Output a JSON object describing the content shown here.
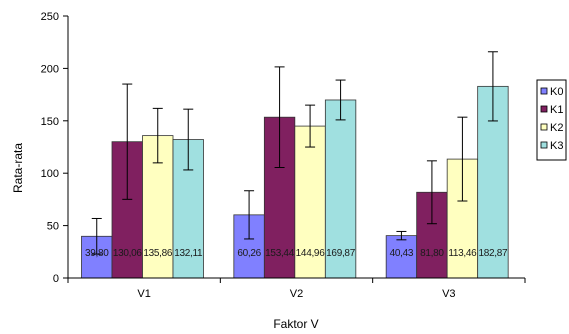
{
  "chart_data": {
    "type": "bar",
    "categories": [
      "V1",
      "V2",
      "V3"
    ],
    "series": [
      {
        "name": "K0",
        "color": "#8080ff",
        "values": [
          39.8,
          60.26,
          40.43
        ],
        "labels": [
          "39,80",
          "60,26",
          "40,43"
        ],
        "errors": [
          17,
          23,
          4
        ]
      },
      {
        "name": "K1",
        "color": "#802060",
        "values": [
          130.06,
          153.44,
          81.8
        ],
        "labels": [
          "130,06",
          "153,44",
          "81,80"
        ],
        "errors": [
          55,
          48,
          30
        ]
      },
      {
        "name": "K2",
        "color": "#ffffc0",
        "values": [
          135.86,
          144.96,
          113.46
        ],
        "labels": [
          "135,86",
          "144,96",
          "113,46"
        ],
        "errors": [
          26,
          20,
          40
        ]
      },
      {
        "name": "K3",
        "color": "#a0e0e0",
        "values": [
          132.11,
          169.87,
          182.87
        ],
        "labels": [
          "132,11",
          "169,87",
          "182,87"
        ],
        "errors": [
          29,
          19,
          33
        ]
      }
    ],
    "ylabel": "Rata-rata",
    "xlabel": "Faktor V",
    "ylim": [
      0,
      250
    ],
    "yticks": [
      0,
      50,
      100,
      150,
      200,
      250
    ],
    "grid": false,
    "legend_position": "right"
  }
}
